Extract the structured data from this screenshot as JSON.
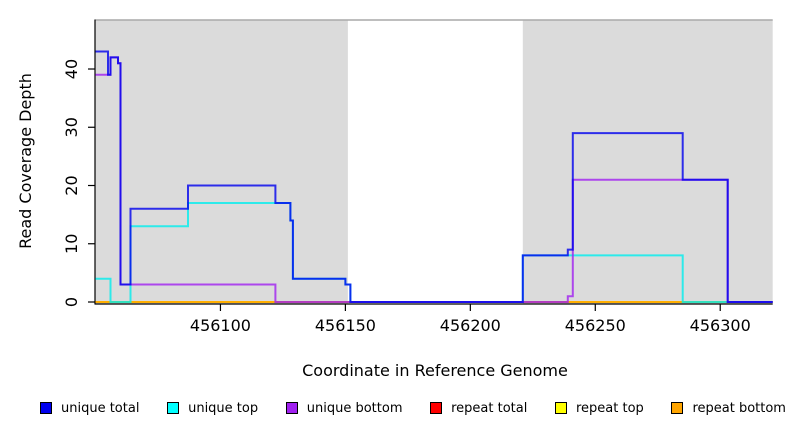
{
  "chart_data": {
    "type": "line",
    "step": true,
    "title": "",
    "xlabel": "Coordinate in Reference Genome",
    "ylabel": "Read Coverage Depth",
    "xlim": [
      456050,
      456321
    ],
    "ylim": [
      0,
      48.5
    ],
    "x_ticks": [
      456100,
      456150,
      456200,
      456250,
      456300
    ],
    "y_ticks": [
      0,
      10,
      20,
      30,
      40
    ],
    "grid": false,
    "legend_position": "bottom",
    "shade_color": "#DBDBDB",
    "frame_line_color": "#A9A9A9",
    "axis_color": "#000000",
    "line_alpha": 0.8,
    "line_width": 2,
    "shaded_regions": [
      [
        456050,
        456151
      ],
      [
        456221,
        456321
      ]
    ],
    "series": [
      {
        "name": "repeat total",
        "color": "#FF0000",
        "points": [
          [
            456050,
            0
          ],
          [
            456321,
            0
          ]
        ]
      },
      {
        "name": "repeat top",
        "color": "#FFFF00",
        "points": [
          [
            456050,
            0
          ],
          [
            456321,
            0
          ]
        ]
      },
      {
        "name": "repeat bottom",
        "color": "#FFA500",
        "points": [
          [
            456050,
            0
          ],
          [
            456321,
            0
          ]
        ]
      },
      {
        "name": "unique top",
        "color": "#00EEEE",
        "points": [
          [
            456050,
            4
          ],
          [
            456056,
            0
          ],
          [
            456064,
            13
          ],
          [
            456087,
            17
          ],
          [
            456128,
            14
          ],
          [
            456129,
            4
          ],
          [
            456150,
            3
          ],
          [
            456152,
            0
          ],
          [
            456221,
            8
          ],
          [
            456285,
            0
          ],
          [
            456321,
            0
          ]
        ]
      },
      {
        "name": "unique bottom",
        "color": "#A020F0",
        "points": [
          [
            456050,
            39
          ],
          [
            456056,
            42
          ],
          [
            456059,
            41
          ],
          [
            456060,
            3
          ],
          [
            456122,
            0
          ],
          [
            456239,
            1
          ],
          [
            456241,
            21
          ],
          [
            456303,
            0
          ],
          [
            456321,
            0
          ]
        ]
      },
      {
        "name": "unique total",
        "color": "#0000EE",
        "points": [
          [
            456050,
            43
          ],
          [
            456055,
            39
          ],
          [
            456056,
            42
          ],
          [
            456059,
            41
          ],
          [
            456060,
            3
          ],
          [
            456064,
            16
          ],
          [
            456087,
            20
          ],
          [
            456122,
            17
          ],
          [
            456128,
            14
          ],
          [
            456129,
            4
          ],
          [
            456150,
            3
          ],
          [
            456152,
            0
          ],
          [
            456221,
            8
          ],
          [
            456239,
            9
          ],
          [
            456241,
            29
          ],
          [
            456285,
            21
          ],
          [
            456303,
            0
          ],
          [
            456321,
            0
          ]
        ]
      }
    ]
  },
  "legend": {
    "items": [
      {
        "label": "unique total",
        "color": "#0000EE"
      },
      {
        "label": "unique top",
        "color": "#00FFFF"
      },
      {
        "label": "unique bottom",
        "color": "#A020F0"
      },
      {
        "label": "repeat total",
        "color": "#FF0000"
      },
      {
        "label": "repeat top",
        "color": "#FFFF00"
      },
      {
        "label": "repeat bottom",
        "color": "#FFA500"
      }
    ]
  }
}
